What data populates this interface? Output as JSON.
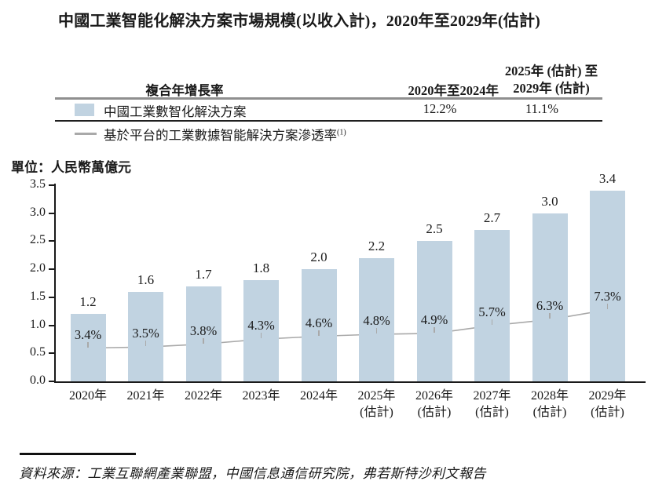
{
  "title": "中國工業智能化解決方案市場規模(以收入計)，2020年至2029年(估計)",
  "unit_label": "單位：人民幣萬億元",
  "source": "資料來源：工業互聯網產業聯盟，中國信息通信研究院，弗若斯特沙利文報告",
  "table": {
    "header": {
      "cagr_label": "複合年增長率",
      "col1": "2020年至2024年",
      "col2_line1": "2025年 (估計) 至",
      "col2_line2": "2029年 (估計)"
    },
    "rows": [
      {
        "label": "中國工業數智化解決方案",
        "col1": "12.2%",
        "col2": "11.1%"
      },
      {
        "label": "基於平台的工業數據智能解決方案滲透率",
        "footnote": "(1)"
      }
    ]
  },
  "colors": {
    "bar": "#c1d3e1",
    "line": "#a9a9a9",
    "text": "#1a1a1a"
  },
  "chart_data": {
    "type": "bar",
    "title": "中國工業智能化解決方案市場規模(以收入計)，2020年至2029年(估計)",
    "unit": "人民幣萬億元",
    "grid": false,
    "legend_position": "table-above-chart",
    "categories": [
      {
        "label": "2020年"
      },
      {
        "label": "2021年"
      },
      {
        "label": "2022年"
      },
      {
        "label": "2023年"
      },
      {
        "label": "2024年"
      },
      {
        "label": "2025年",
        "note": "(估計)"
      },
      {
        "label": "2026年",
        "note": "(估計)"
      },
      {
        "label": "2027年",
        "note": "(估計)"
      },
      {
        "label": "2028年",
        "note": "(估計)"
      },
      {
        "label": "2029年",
        "note": "(估計)"
      }
    ],
    "series": [
      {
        "name": "中國工業數智化解決方案",
        "type": "bar",
        "color": "#c1d3e1",
        "values": [
          1.2,
          1.6,
          1.7,
          1.8,
          2.0,
          2.2,
          2.5,
          2.7,
          3.0,
          3.4
        ],
        "labels": [
          "1.2",
          "1.6",
          "1.7",
          "1.8",
          "2.0",
          "2.2",
          "2.5",
          "2.7",
          "3.0",
          "3.4"
        ]
      },
      {
        "name": "基於平台的工業數據智能解決方案滲透率(1)",
        "type": "line",
        "color": "#a9a9a9",
        "values_percent": [
          3.4,
          3.5,
          3.8,
          4.3,
          4.6,
          4.8,
          4.9,
          5.7,
          6.3,
          7.3
        ],
        "labels": [
          "3.4%",
          "3.5%",
          "3.8%",
          "4.3%",
          "4.6%",
          "4.8%",
          "4.9%",
          "5.7%",
          "6.3%",
          "7.3%"
        ]
      }
    ],
    "ylim": [
      0,
      3.5
    ],
    "ytick_step": 0.5,
    "yticks": [
      "0.0",
      "0.5",
      "1.0",
      "1.5",
      "2.0",
      "2.5",
      "3.0",
      "3.5"
    ]
  }
}
